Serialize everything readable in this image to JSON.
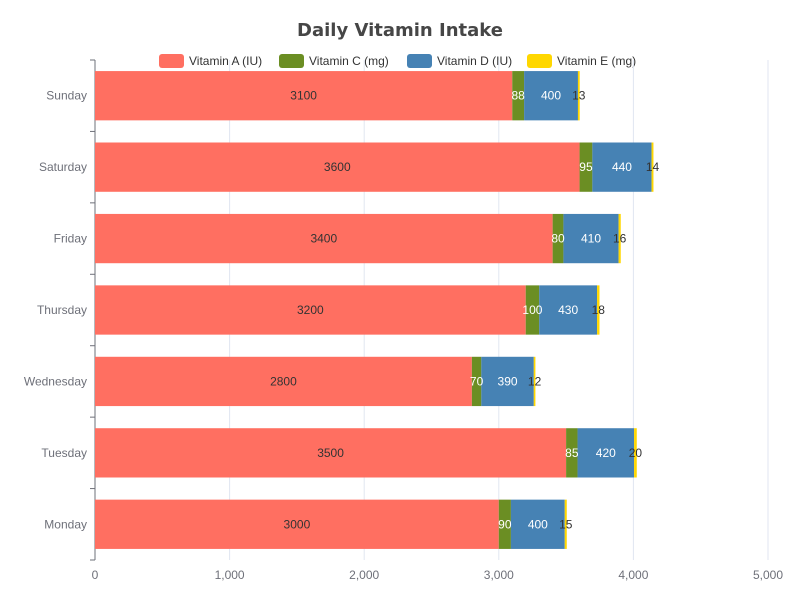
{
  "chart_data": {
    "type": "bar",
    "orientation": "horizontal",
    "stacked": true,
    "title": "Daily Vitamin Intake",
    "xlabel": "",
    "ylabel": "",
    "categories": [
      "Monday",
      "Tuesday",
      "Wednesday",
      "Thursday",
      "Friday",
      "Saturday",
      "Sunday"
    ],
    "series": [
      {
        "name": "Vitamin A (IU)",
        "color": "#ff6f61",
        "values": [
          3000,
          3500,
          2800,
          3200,
          3400,
          3600,
          3100
        ]
      },
      {
        "name": "Vitamin C (mg)",
        "color": "#6b8e23",
        "values": [
          90,
          85,
          70,
          100,
          80,
          95,
          88
        ]
      },
      {
        "name": "Vitamin D (IU)",
        "color": "#4682b4",
        "values": [
          400,
          420,
          390,
          430,
          410,
          440,
          400
        ]
      },
      {
        "name": "Vitamin E (mg)",
        "color": "#ffd700",
        "values": [
          15,
          20,
          12,
          18,
          16,
          14,
          13
        ]
      }
    ],
    "xlim": [
      0,
      5000
    ],
    "xticks": [
      0,
      1000,
      2000,
      3000,
      4000,
      5000
    ],
    "xtick_labels": [
      "0",
      "1,000",
      "2,000",
      "3,000",
      "4,000",
      "5,000"
    ],
    "grid": true,
    "legend_position": "top-center"
  }
}
